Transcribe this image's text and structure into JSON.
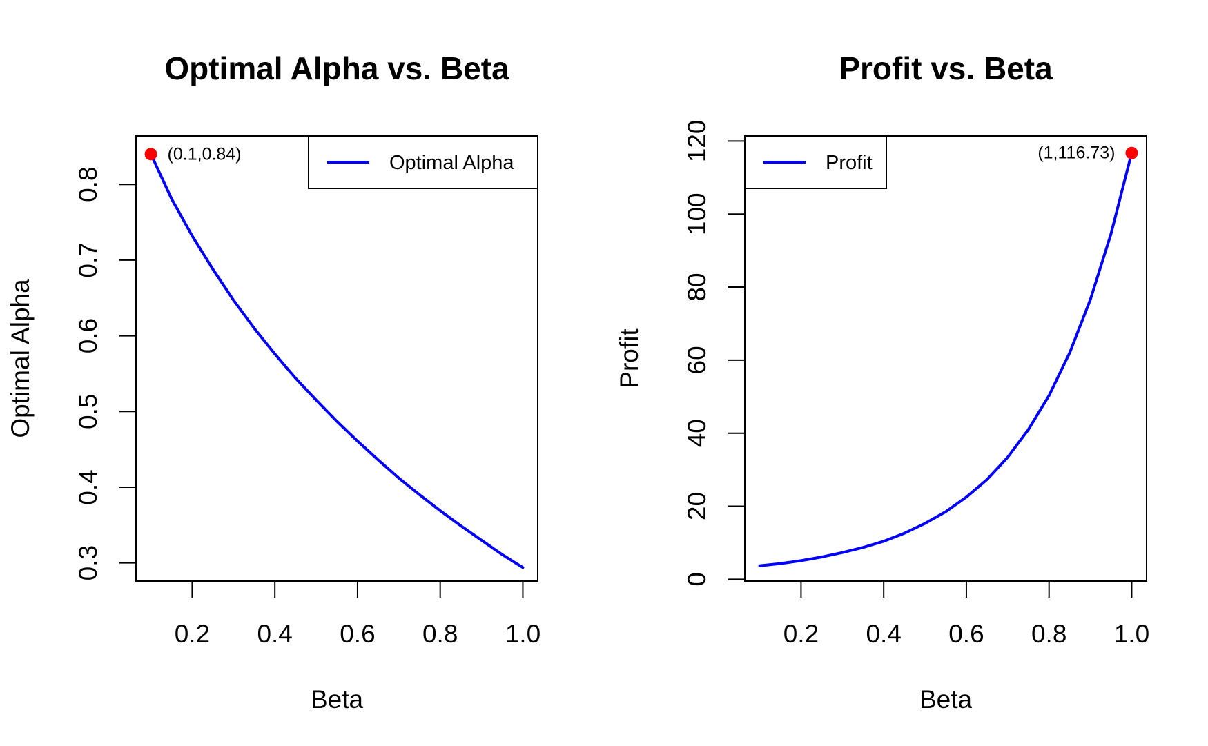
{
  "colors": {
    "series": "#0000ff",
    "highlight": "#ff0000",
    "axis": "#000000",
    "background": "#ffffff"
  },
  "chart_data": [
    {
      "type": "line",
      "title": "Optimal Alpha vs. Beta",
      "xlabel": "Beta",
      "ylabel": "Optimal Alpha",
      "xlim": [
        0.064,
        1.036
      ],
      "ylim": [
        0.276,
        0.864
      ],
      "xticks": [
        0.2,
        0.4,
        0.6,
        0.8,
        1.0
      ],
      "xtick_labels": [
        "0.2",
        "0.4",
        "0.6",
        "0.8",
        "1.0"
      ],
      "yticks": [
        0.3,
        0.4,
        0.5,
        0.6,
        0.7,
        0.8
      ],
      "ytick_labels": [
        "0.3",
        "0.4",
        "0.5",
        "0.6",
        "0.7",
        "0.8"
      ],
      "legend": {
        "position": "top-right",
        "entries": [
          "Optimal Alpha"
        ]
      },
      "series": [
        {
          "name": "Optimal Alpha",
          "x": [
            0.1,
            0.15,
            0.2,
            0.25,
            0.3,
            0.35,
            0.4,
            0.45,
            0.5,
            0.55,
            0.6,
            0.65,
            0.7,
            0.75,
            0.8,
            0.85,
            0.9,
            0.95,
            1.0
          ],
          "y": [
            0.84,
            0.781,
            0.732,
            0.688,
            0.647,
            0.61,
            0.576,
            0.544,
            0.515,
            0.487,
            0.461,
            0.436,
            0.412,
            0.39,
            0.369,
            0.349,
            0.33,
            0.311,
            0.294
          ]
        }
      ],
      "highlight": {
        "x": 0.1,
        "y": 0.84,
        "label": "(0.1,0.84)",
        "label_side": "right"
      }
    },
    {
      "type": "line",
      "title": "Profit vs. Beta",
      "xlabel": "Beta",
      "ylabel": "Profit",
      "xlim": [
        0.064,
        1.036
      ],
      "ylim": [
        -0.5,
        121.4
      ],
      "xticks": [
        0.2,
        0.4,
        0.6,
        0.8,
        1.0
      ],
      "xtick_labels": [
        "0.2",
        "0.4",
        "0.6",
        "0.8",
        "1.0"
      ],
      "yticks": [
        0,
        20,
        40,
        60,
        80,
        100,
        120
      ],
      "ytick_labels": [
        "0",
        "20",
        "40",
        "60",
        "80",
        "100",
        "120"
      ],
      "legend": {
        "position": "top-left",
        "entries": [
          "Profit"
        ]
      },
      "series": [
        {
          "name": "Profit",
          "x": [
            0.1,
            0.15,
            0.2,
            0.25,
            0.3,
            0.35,
            0.4,
            0.45,
            0.5,
            0.55,
            0.6,
            0.65,
            0.7,
            0.75,
            0.8,
            0.85,
            0.9,
            0.95,
            1.0
          ],
          "y": [
            3.7,
            4.3,
            5.1,
            6.1,
            7.3,
            8.7,
            10.4,
            12.6,
            15.3,
            18.5,
            22.5,
            27.3,
            33.4,
            41.0,
            50.3,
            62.0,
            76.6,
            94.6,
            116.73
          ]
        }
      ],
      "highlight": {
        "x": 1.0,
        "y": 116.73,
        "label": "(1,116.73)",
        "label_side": "left"
      }
    }
  ]
}
